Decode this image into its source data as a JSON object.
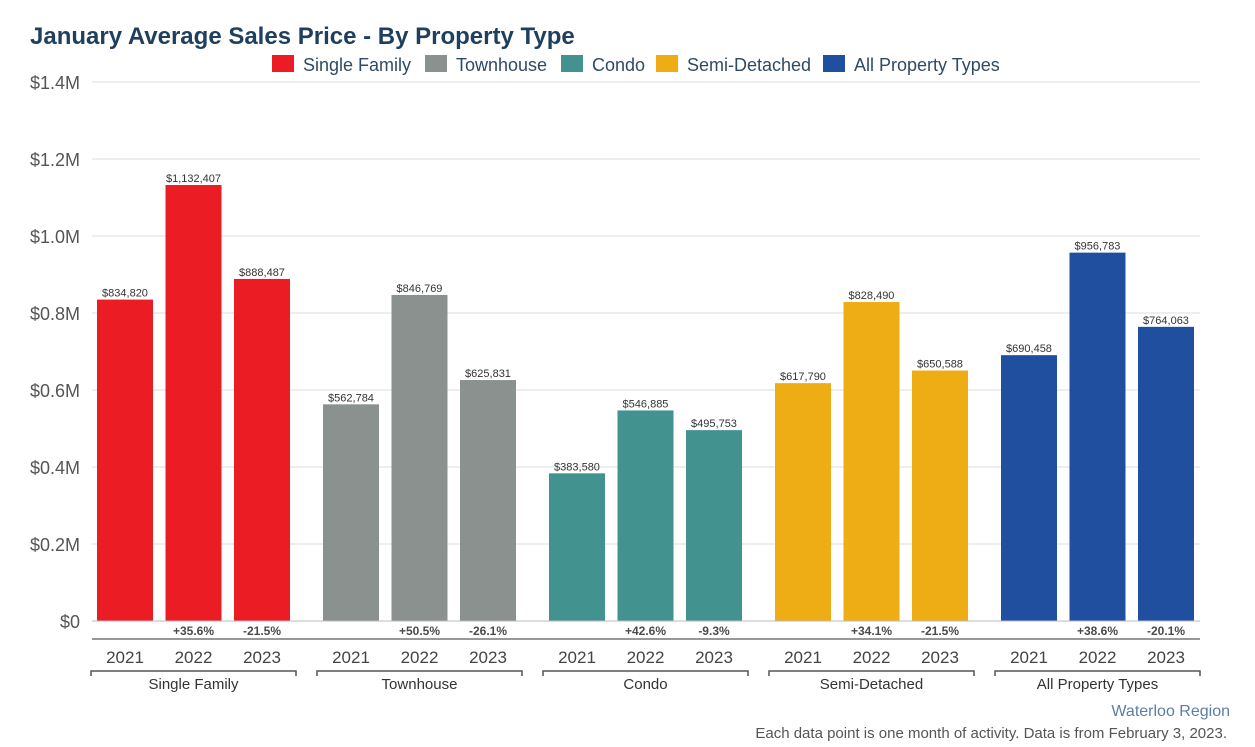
{
  "chart_data": {
    "type": "bar",
    "title": "January Average Sales Price - By Property Type",
    "legend": [
      "Single Family",
      "Townhouse",
      "Condo",
      "Semi-Detached",
      "All Property Types"
    ],
    "legend_position": "top",
    "colors": {
      "Single Family": "#ec1c24",
      "Townhouse": "#8a918f",
      "Condo": "#429290",
      "Semi-Detached": "#eead15",
      "All Property Types": "#1f4f9e"
    },
    "ylim": [
      0,
      1400000
    ],
    "yticks": [
      0,
      200000,
      400000,
      600000,
      800000,
      1000000,
      1200000,
      1400000
    ],
    "ytick_labels": [
      "$0",
      "$0.2M",
      "$0.4M",
      "$0.6M",
      "$0.8M",
      "$1.0M",
      "$1.2M",
      "$1.4M"
    ],
    "grid": true,
    "groups": [
      {
        "name": "Single Family",
        "years": [
          "2021",
          "2022",
          "2023"
        ],
        "values": [
          834820,
          1132407,
          888487
        ],
        "value_labels": [
          "$834,820",
          "$1,132,407",
          "$888,487"
        ],
        "changes": [
          "",
          "+35.6%",
          "-21.5%"
        ]
      },
      {
        "name": "Townhouse",
        "years": [
          "2021",
          "2022",
          "2023"
        ],
        "values": [
          562784,
          846769,
          625831
        ],
        "value_labels": [
          "$562,784",
          "$846,769",
          "$625,831"
        ],
        "changes": [
          "",
          "+50.5%",
          "-26.1%"
        ]
      },
      {
        "name": "Condo",
        "years": [
          "2021",
          "2022",
          "2023"
        ],
        "values": [
          383580,
          546885,
          495753
        ],
        "value_labels": [
          "$383,580",
          "$546,885",
          "$495,753"
        ],
        "changes": [
          "",
          "+42.6%",
          "-9.3%"
        ]
      },
      {
        "name": "Semi-Detached",
        "years": [
          "2021",
          "2022",
          "2023"
        ],
        "values": [
          617790,
          828490,
          650588
        ],
        "value_labels": [
          "$617,790",
          "$828,490",
          "$650,588"
        ],
        "changes": [
          "",
          "+34.1%",
          "-21.5%"
        ]
      },
      {
        "name": "All Property Types",
        "years": [
          "2021",
          "2022",
          "2023"
        ],
        "values": [
          690458,
          956783,
          764063
        ],
        "value_labels": [
          "$690,458",
          "$956,783",
          "$764,063"
        ],
        "changes": [
          "",
          "+38.6%",
          "-20.1%"
        ]
      }
    ],
    "source": "Waterloo Region",
    "note": "Each data point is one month of activity. Data is from February 3, 2023."
  }
}
